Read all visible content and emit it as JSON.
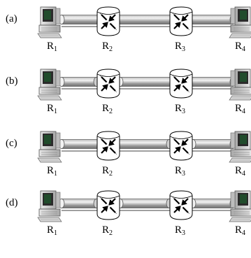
{
  "rows": [
    {
      "label": "(a)",
      "tunnels": [
        {
          "from": "R1",
          "to": "R4"
        }
      ]
    },
    {
      "label": "(b)",
      "tunnels": [
        {
          "from": "R1",
          "to": "R2"
        },
        {
          "from": "R2",
          "to": "R4"
        }
      ]
    },
    {
      "label": "(c)",
      "tunnels": [
        {
          "from": "R1",
          "to": "R3"
        },
        {
          "from": "R3",
          "to": "R4"
        }
      ]
    },
    {
      "label": "(d)",
      "tunnels": [
        {
          "from": "R1",
          "to": "R2"
        },
        {
          "from": "R2",
          "to": "R3"
        },
        {
          "from": "R3",
          "to": "R4"
        }
      ]
    }
  ],
  "nodes": [
    {
      "id": "R1",
      "base": "R",
      "sub": "1",
      "kind": "host"
    },
    {
      "id": "R2",
      "base": "R",
      "sub": "2",
      "kind": "router"
    },
    {
      "id": "R3",
      "base": "R",
      "sub": "3",
      "kind": "router"
    },
    {
      "id": "R4",
      "base": "R",
      "sub": "4",
      "kind": "host"
    }
  ],
  "colors": {
    "tunnel_light": "#f2f2f2",
    "tunnel_dark": "#8a8a8a",
    "router_fill": "#ffffff",
    "arrow": "#000000",
    "monitor_screen": "#2b2b2b",
    "screen_glow": "#1e5b2e"
  }
}
